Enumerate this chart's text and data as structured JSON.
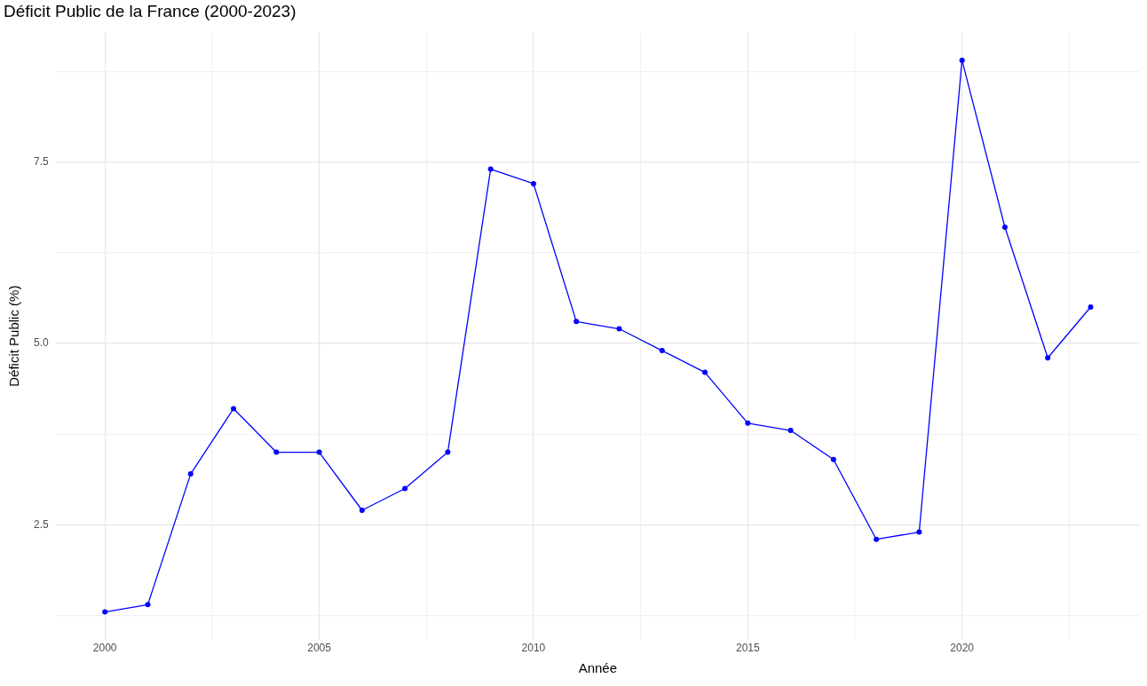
{
  "chart_data": {
    "type": "line",
    "title": "Déficit Public de la France (2000-2023)",
    "xlabel": "Année",
    "ylabel": "Déficit Public (%)",
    "x": [
      2000,
      2001,
      2002,
      2003,
      2004,
      2005,
      2006,
      2007,
      2008,
      2009,
      2010,
      2011,
      2012,
      2013,
      2014,
      2015,
      2016,
      2017,
      2018,
      2019,
      2020,
      2021,
      2022,
      2023
    ],
    "series": [
      {
        "color": "#0000ff",
        "values": [
          1.3,
          1.4,
          3.2,
          4.1,
          3.5,
          3.5,
          2.7,
          3.0,
          3.5,
          7.4,
          7.2,
          5.3,
          5.2,
          4.9,
          4.6,
          3.9,
          3.8,
          3.4,
          2.3,
          2.4,
          8.9,
          6.6,
          4.8,
          5.5
        ]
      }
    ],
    "xlim": [
      1998.85,
      2024.15
    ],
    "xticks": [
      2000,
      {
        "value": 2002.5,
        "label": null
      },
      2005,
      {
        "value": 2007.5,
        "label": null
      },
      2010,
      {
        "value": 2012.5,
        "label": null
      },
      2015,
      {
        "value": 2017.5,
        "label": null
      },
      2020,
      {
        "value": 2022.5,
        "label": null
      }
    ],
    "ylim": [
      0.92,
      9.28
    ],
    "yticks": [
      {
        "value": 1.25,
        "label": null
      },
      2.5,
      {
        "value": 3.75,
        "label": null
      },
      {
        "value": 5,
        "label": "5.0"
      },
      {
        "value": 6.25,
        "label": null
      },
      7.5,
      {
        "value": 8.75,
        "label": null
      }
    ],
    "grid": true,
    "legend": false,
    "marker": "circle",
    "line_style": "solid"
  }
}
